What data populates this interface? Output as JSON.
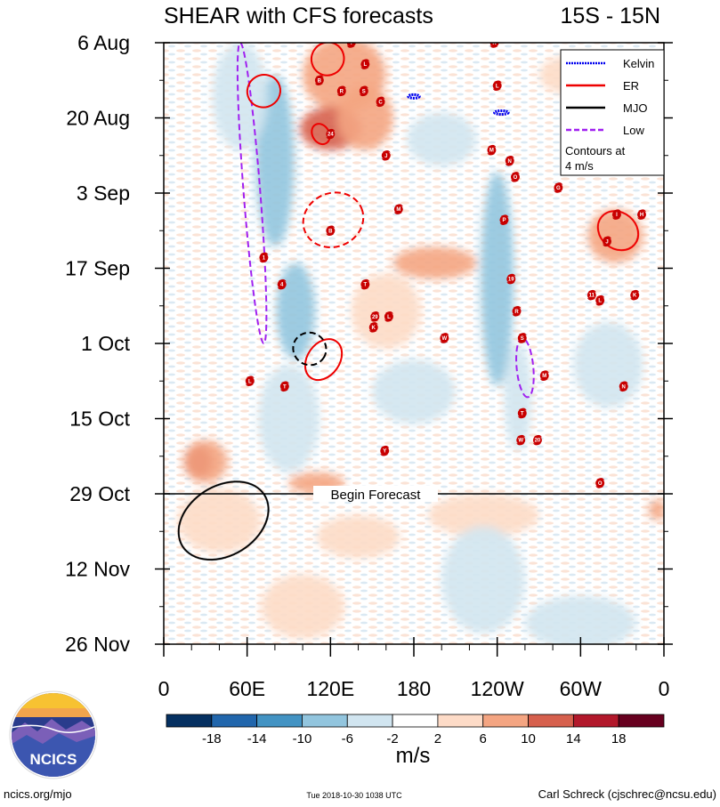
{
  "chart_data": {
    "type": "heatmap",
    "title": "SHEAR with CFS forecasts",
    "region": "15S - 15N",
    "x_ticks": [
      "0",
      "60E",
      "120E",
      "180",
      "120W",
      "60W",
      "0"
    ],
    "x_values": [
      0,
      60,
      120,
      180,
      240,
      300,
      360
    ],
    "xlim": [
      0,
      360
    ],
    "y_ticks": [
      "6 Aug",
      "20 Aug",
      "3 Sep",
      "17 Sep",
      "1 Oct",
      "15 Oct",
      "29 Oct",
      "12 Nov",
      "26 Nov"
    ],
    "y_values": [
      0,
      14,
      28,
      42,
      56,
      70,
      84,
      98,
      112
    ],
    "ylim": [
      0,
      112
    ],
    "forecast_start_day": 84,
    "forecast_label": "Begin Forecast",
    "colorbar": {
      "unit": "m/s",
      "labels": [
        "-18",
        "-14",
        "-10",
        "-6",
        "-2",
        "2",
        "6",
        "10",
        "14",
        "18"
      ],
      "colors": [
        "#053061",
        "#2166ac",
        "#4393c3",
        "#92c5de",
        "#d1e5f0",
        "#ffffff",
        "#fddbc7",
        "#f4a582",
        "#d6604d",
        "#b2182b",
        "#67001f"
      ]
    },
    "legend": {
      "items": [
        {
          "name": "Kelvin",
          "color": "#0000ee",
          "dash": "dense"
        },
        {
          "name": "ER",
          "color": "#ee0000",
          "dash": "none"
        },
        {
          "name": "MJO",
          "color": "#000000",
          "dash": "none"
        },
        {
          "name": "Low",
          "color": "#a020f0",
          "dash": "dash"
        }
      ],
      "note_line1": "Contours at",
      "note_line2": "4 m/s"
    },
    "contours": [
      {
        "type": "Low",
        "lon": 55,
        "day": 0,
        "lon2": 72,
        "day2": 56
      },
      {
        "type": "Low",
        "lon": 258,
        "day": 55,
        "lon2": 262,
        "day2": 66
      },
      {
        "type": "ER",
        "lon": 122,
        "day": 33,
        "rx": 22,
        "ry": 5,
        "angle": -22,
        "dash": true
      },
      {
        "type": "ER",
        "lon": 72,
        "day": 9,
        "rx": 12,
        "ry": 3,
        "angle": -30,
        "dash": false
      },
      {
        "type": "ER",
        "lon": 113,
        "day": 17,
        "rx": 6,
        "ry": 2,
        "angle": -30,
        "dash": false
      },
      {
        "type": "ER",
        "lon": 118,
        "day": 3,
        "rx": 12,
        "ry": 3,
        "angle": -60,
        "dash": false
      },
      {
        "type": "ER",
        "lon": 115,
        "day": 59,
        "rx": 16,
        "ry": 3,
        "angle": -55,
        "dash": false
      },
      {
        "type": "ER",
        "lon": 327,
        "day": 35,
        "rx": 13,
        "ry": 4,
        "angle": -50,
        "dash": false
      },
      {
        "type": "MJO",
        "lon": 105,
        "day": 57,
        "rx": 12,
        "ry": 3,
        "angle": 30,
        "dash": true
      },
      {
        "type": "MJO",
        "lon": 43,
        "day": 89,
        "rx": 25,
        "ry": 9,
        "angle": 58,
        "dash": false
      },
      {
        "type": "Kelvin",
        "lon": 180,
        "day": 10,
        "rx": 4,
        "ry": 0.3,
        "angle": 0,
        "dash": true
      },
      {
        "type": "Kelvin",
        "lon": 243,
        "day": 13,
        "rx": 5,
        "ry": 0.3,
        "angle": 0,
        "dash": true
      }
    ],
    "storms": [
      {
        "label": "Y",
        "lon": 135,
        "day": 0
      },
      {
        "label": "K",
        "lon": 238,
        "day": 0
      },
      {
        "label": "L",
        "lon": 145,
        "day": 4
      },
      {
        "label": "B",
        "lon": 112,
        "day": 7
      },
      {
        "label": "R",
        "lon": 128,
        "day": 9
      },
      {
        "label": "S",
        "lon": 144,
        "day": 9
      },
      {
        "label": "C",
        "lon": 156,
        "day": 11
      },
      {
        "label": "L",
        "lon": 240,
        "day": 8
      },
      {
        "label": "24",
        "lon": 120,
        "day": 17
      },
      {
        "label": "J",
        "lon": 160,
        "day": 21
      },
      {
        "label": "M",
        "lon": 236,
        "day": 20
      },
      {
        "label": "N",
        "lon": 249,
        "day": 22
      },
      {
        "label": "O",
        "lon": 253,
        "day": 25
      },
      {
        "label": "G",
        "lon": 284,
        "day": 27
      },
      {
        "label": "M",
        "lon": 169,
        "day": 31
      },
      {
        "label": "B",
        "lon": 120,
        "day": 35
      },
      {
        "label": "P",
        "lon": 245,
        "day": 33
      },
      {
        "label": "I",
        "lon": 326,
        "day": 32
      },
      {
        "label": "H",
        "lon": 344,
        "day": 32
      },
      {
        "label": "J",
        "lon": 319,
        "day": 37
      },
      {
        "label": "1",
        "lon": 72,
        "day": 40
      },
      {
        "label": "4",
        "lon": 85,
        "day": 45
      },
      {
        "label": "T",
        "lon": 145,
        "day": 45
      },
      {
        "label": "19",
        "lon": 250,
        "day": 44
      },
      {
        "label": "11",
        "lon": 308,
        "day": 47
      },
      {
        "label": "L",
        "lon": 314,
        "day": 48
      },
      {
        "label": "K",
        "lon": 339,
        "day": 47
      },
      {
        "label": "R",
        "lon": 254,
        "day": 50
      },
      {
        "label": "29",
        "lon": 152,
        "day": 51
      },
      {
        "label": "L",
        "lon": 162,
        "day": 51
      },
      {
        "label": "K",
        "lon": 151,
        "day": 53
      },
      {
        "label": "W",
        "lon": 202,
        "day": 55
      },
      {
        "label": "S",
        "lon": 258,
        "day": 55
      },
      {
        "label": "L",
        "lon": 62,
        "day": 63
      },
      {
        "label": "T",
        "lon": 87,
        "day": 64
      },
      {
        "label": "M",
        "lon": 274,
        "day": 62
      },
      {
        "label": "N",
        "lon": 331,
        "day": 64
      },
      {
        "label": "T",
        "lon": 258,
        "day": 69
      },
      {
        "label": "W",
        "lon": 257,
        "day": 74
      },
      {
        "label": "20",
        "lon": 269,
        "day": 74
      },
      {
        "label": "Y",
        "lon": 159,
        "day": 76
      },
      {
        "label": "O",
        "lon": 314,
        "day": 82
      }
    ],
    "shear_patches": [
      {
        "lon": 25,
        "day": 78,
        "rx": 10,
        "ry": 3,
        "v": 16
      },
      {
        "lon": 30,
        "day": 78,
        "rx": 16,
        "ry": 4,
        "v": 9
      },
      {
        "lon": 40,
        "day": 89,
        "rx": 30,
        "ry": 6,
        "v": 6
      },
      {
        "lon": 80,
        "day": 22,
        "rx": 14,
        "ry": 16,
        "v": -7
      },
      {
        "lon": 55,
        "day": 10,
        "rx": 20,
        "ry": 10,
        "v": -5
      },
      {
        "lon": 95,
        "day": 50,
        "rx": 14,
        "ry": 9,
        "v": -8
      },
      {
        "lon": 90,
        "day": 70,
        "rx": 22,
        "ry": 10,
        "v": -4
      },
      {
        "lon": 130,
        "day": 6,
        "rx": 30,
        "ry": 7,
        "v": 8
      },
      {
        "lon": 120,
        "day": 16,
        "rx": 22,
        "ry": 4,
        "v": 11
      },
      {
        "lon": 145,
        "day": 14,
        "rx": 20,
        "ry": 6,
        "v": 7
      },
      {
        "lon": 195,
        "day": 41,
        "rx": 30,
        "ry": 3,
        "v": 10
      },
      {
        "lon": 160,
        "day": 50,
        "rx": 25,
        "ry": 7,
        "v": 5
      },
      {
        "lon": 200,
        "day": 18,
        "rx": 25,
        "ry": 5,
        "v": -5
      },
      {
        "lon": 240,
        "day": 44,
        "rx": 12,
        "ry": 20,
        "v": -6
      },
      {
        "lon": 255,
        "day": 66,
        "rx": 10,
        "ry": 10,
        "v": -5
      },
      {
        "lon": 300,
        "day": 6,
        "rx": 30,
        "ry": 4,
        "v": 5
      },
      {
        "lon": 325,
        "day": 36,
        "rx": 20,
        "ry": 5,
        "v": 7
      },
      {
        "lon": 230,
        "day": 88,
        "rx": 40,
        "ry": 4,
        "v": 6
      },
      {
        "lon": 140,
        "day": 92,
        "rx": 30,
        "ry": 4,
        "v": 5
      },
      {
        "lon": 355,
        "day": 87,
        "rx": 6,
        "ry": 2,
        "v": 10
      },
      {
        "lon": 230,
        "day": 100,
        "rx": 30,
        "ry": 10,
        "v": -3
      },
      {
        "lon": 100,
        "day": 105,
        "rx": 30,
        "ry": 6,
        "v": 3
      },
      {
        "lon": 300,
        "day": 108,
        "rx": 40,
        "ry": 5,
        "v": -3
      },
      {
        "lon": 180,
        "day": 65,
        "rx": 30,
        "ry": 6,
        "v": -4
      },
      {
        "lon": 320,
        "day": 60,
        "rx": 25,
        "ry": 8,
        "v": -4
      },
      {
        "lon": 110,
        "day": 82,
        "rx": 20,
        "ry": 2,
        "v": 8
      }
    ]
  },
  "footer": {
    "logo_text": "NCICS",
    "left": "ncics.org/mjo",
    "center": "Tue 2018-10-30 1038 UTC",
    "right": "Carl Schreck (cjschrec@ncsu.edu)"
  }
}
